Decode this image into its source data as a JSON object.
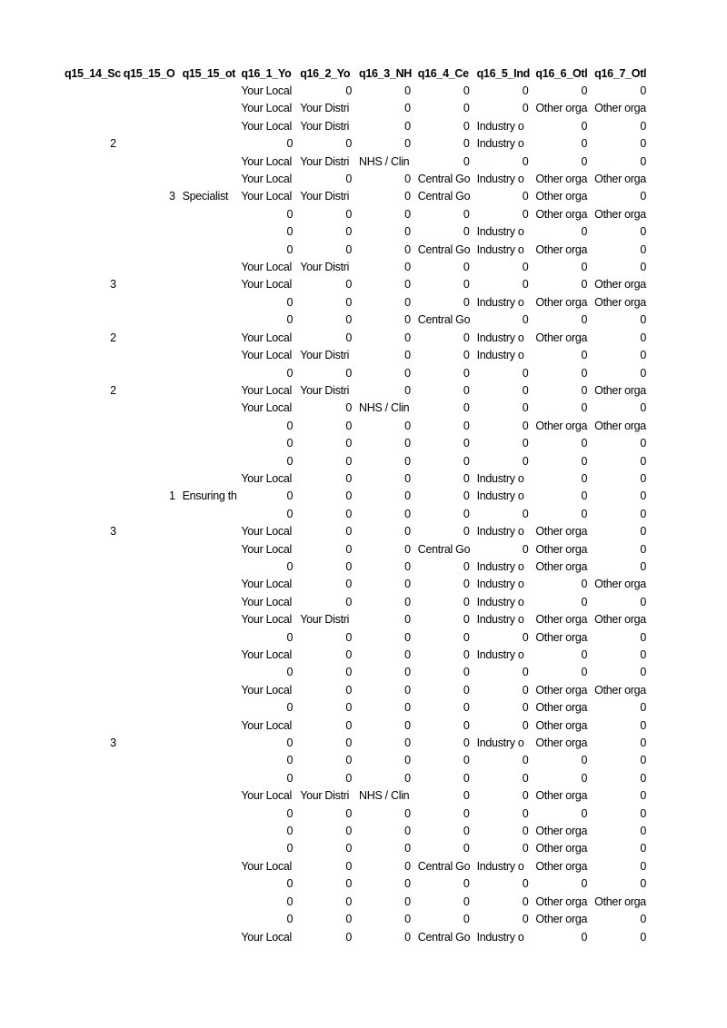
{
  "page": {
    "background": "#ffffff",
    "text_color": "#000000"
  },
  "table": {
    "column_headers": [
      "q15_14_Sc",
      "q15_15_O",
      "q15_15_ot",
      "q16_1_Yo",
      "q16_2_Yo",
      "q16_3_NH",
      "q16_4_Ce",
      "q16_5_Ind",
      "q16_6_Otl",
      "q16_7_Otl"
    ],
    "rows": [
      [
        "",
        "",
        "",
        "Your Local",
        "0",
        "0",
        "0",
        "0",
        "0",
        "0"
      ],
      [
        "",
        "",
        "",
        "Your Local",
        "Your Distri",
        "0",
        "0",
        "0",
        "Other orga",
        "Other orga"
      ],
      [
        "",
        "",
        "",
        "Your Local",
        "Your Distri",
        "0",
        "0",
        "Industry o",
        "0",
        "0"
      ],
      [
        "2",
        "",
        "",
        "0",
        "0",
        "0",
        "0",
        "Industry o",
        "0",
        "0"
      ],
      [
        "",
        "",
        "",
        "Your Local",
        "Your Distri",
        "NHS / Clin",
        "0",
        "0",
        "0",
        "0"
      ],
      [
        "",
        "",
        "",
        "Your Local",
        "0",
        "0",
        "Central Go",
        "Industry o",
        "Other orga",
        "Other orga"
      ],
      [
        "",
        "3",
        "Specialist",
        "Your Local",
        "Your Distri",
        "0",
        "Central Go",
        "0",
        "Other orga",
        "0"
      ],
      [
        "",
        "",
        "",
        "0",
        "0",
        "0",
        "0",
        "0",
        "Other orga",
        "Other orga"
      ],
      [
        "",
        "",
        "",
        "0",
        "0",
        "0",
        "0",
        "Industry o",
        "0",
        "0"
      ],
      [
        "",
        "",
        "",
        "0",
        "0",
        "0",
        "Central Go",
        "Industry o",
        "Other orga",
        "0"
      ],
      [
        "",
        "",
        "",
        "Your Local",
        "Your Distri",
        "0",
        "0",
        "0",
        "0",
        "0"
      ],
      [
        "3",
        "",
        "",
        "Your Local",
        "0",
        "0",
        "0",
        "0",
        "0",
        "Other orga"
      ],
      [
        "",
        "",
        "",
        "0",
        "0",
        "0",
        "0",
        "Industry o",
        "Other orga",
        "Other orga"
      ],
      [
        "",
        "",
        "",
        "0",
        "0",
        "0",
        "Central Go",
        "0",
        "0",
        "0"
      ],
      [
        "2",
        "",
        "",
        "Your Local",
        "0",
        "0",
        "0",
        "Industry o",
        "Other orga",
        "0"
      ],
      [
        "",
        "",
        "",
        "Your Local",
        "Your Distri",
        "0",
        "0",
        "Industry o",
        "0",
        "0"
      ],
      [
        "",
        "",
        "",
        "0",
        "0",
        "0",
        "0",
        "0",
        "0",
        "0"
      ],
      [
        "2",
        "",
        "",
        "Your Local",
        "Your Distri",
        "0",
        "0",
        "0",
        "0",
        "Other orga"
      ],
      [
        "",
        "",
        "",
        "Your Local",
        "0",
        "NHS / Clin",
        "0",
        "0",
        "0",
        "0"
      ],
      [
        "",
        "",
        "",
        "0",
        "0",
        "0",
        "0",
        "0",
        "Other orga",
        "Other orga"
      ],
      [
        "",
        "",
        "",
        "0",
        "0",
        "0",
        "0",
        "0",
        "0",
        "0"
      ],
      [
        "",
        "",
        "",
        "0",
        "0",
        "0",
        "0",
        "0",
        "0",
        "0"
      ],
      [
        "",
        "",
        "",
        "Your Local",
        "0",
        "0",
        "0",
        "Industry o",
        "0",
        "0"
      ],
      [
        "",
        "1",
        "Ensuring th",
        "0",
        "0",
        "0",
        "0",
        "Industry o",
        "0",
        "0"
      ],
      [
        "",
        "",
        "",
        "0",
        "0",
        "0",
        "0",
        "0",
        "0",
        "0"
      ],
      [
        "3",
        "",
        "",
        "Your Local",
        "0",
        "0",
        "0",
        "Industry o",
        "Other orga",
        "0"
      ],
      [
        "",
        "",
        "",
        "Your Local",
        "0",
        "0",
        "Central Go",
        "0",
        "Other orga",
        "0"
      ],
      [
        "",
        "",
        "",
        "0",
        "0",
        "0",
        "0",
        "Industry o",
        "Other orga",
        "0"
      ],
      [
        "",
        "",
        "",
        "Your Local",
        "0",
        "0",
        "0",
        "Industry o",
        "0",
        "Other orga"
      ],
      [
        "",
        "",
        "",
        "Your Local",
        "0",
        "0",
        "0",
        "Industry o",
        "0",
        "0"
      ],
      [
        "",
        "",
        "",
        "Your Local",
        "Your Distri",
        "0",
        "0",
        "Industry o",
        "Other orga",
        "Other orga"
      ],
      [
        "",
        "",
        "",
        "0",
        "0",
        "0",
        "0",
        "0",
        "Other orga",
        "0"
      ],
      [
        "",
        "",
        "",
        "Your Local",
        "0",
        "0",
        "0",
        "Industry o",
        "0",
        "0"
      ],
      [
        "",
        "",
        "",
        "0",
        "0",
        "0",
        "0",
        "0",
        "0",
        "0"
      ],
      [
        "",
        "",
        "",
        "Your Local",
        "0",
        "0",
        "0",
        "0",
        "Other orga",
        "Other orga"
      ],
      [
        "",
        "",
        "",
        "0",
        "0",
        "0",
        "0",
        "0",
        "Other orga",
        "0"
      ],
      [
        "",
        "",
        "",
        "Your Local",
        "0",
        "0",
        "0",
        "0",
        "Other orga",
        "0"
      ],
      [
        "3",
        "",
        "",
        "0",
        "0",
        "0",
        "0",
        "Industry o",
        "Other orga",
        "0"
      ],
      [
        "",
        "",
        "",
        "0",
        "0",
        "0",
        "0",
        "0",
        "0",
        "0"
      ],
      [
        "",
        "",
        "",
        "0",
        "0",
        "0",
        "0",
        "0",
        "0",
        "0"
      ],
      [
        "",
        "",
        "",
        "Your Local",
        "Your Distri",
        "NHS / Clin",
        "0",
        "0",
        "Other orga",
        "0"
      ],
      [
        "",
        "",
        "",
        "0",
        "0",
        "0",
        "0",
        "0",
        "0",
        "0"
      ],
      [
        "",
        "",
        "",
        "0",
        "0",
        "0",
        "0",
        "0",
        "Other orga",
        "0"
      ],
      [
        "",
        "",
        "",
        "0",
        "0",
        "0",
        "0",
        "0",
        "Other orga",
        "0"
      ],
      [
        "",
        "",
        "",
        "Your Local",
        "0",
        "0",
        "Central Go",
        "Industry o",
        "Other orga",
        "0"
      ],
      [
        "",
        "",
        "",
        "0",
        "0",
        "0",
        "0",
        "0",
        "0",
        "0"
      ],
      [
        "",
        "",
        "",
        "0",
        "0",
        "0",
        "0",
        "0",
        "Other orga",
        "Other orga"
      ],
      [
        "",
        "",
        "",
        "0",
        "0",
        "0",
        "0",
        "0",
        "Other orga",
        "0"
      ],
      [
        "",
        "",
        "",
        "Your Local",
        "0",
        "0",
        "Central Go",
        "Industry o",
        "0",
        "0"
      ]
    ]
  }
}
